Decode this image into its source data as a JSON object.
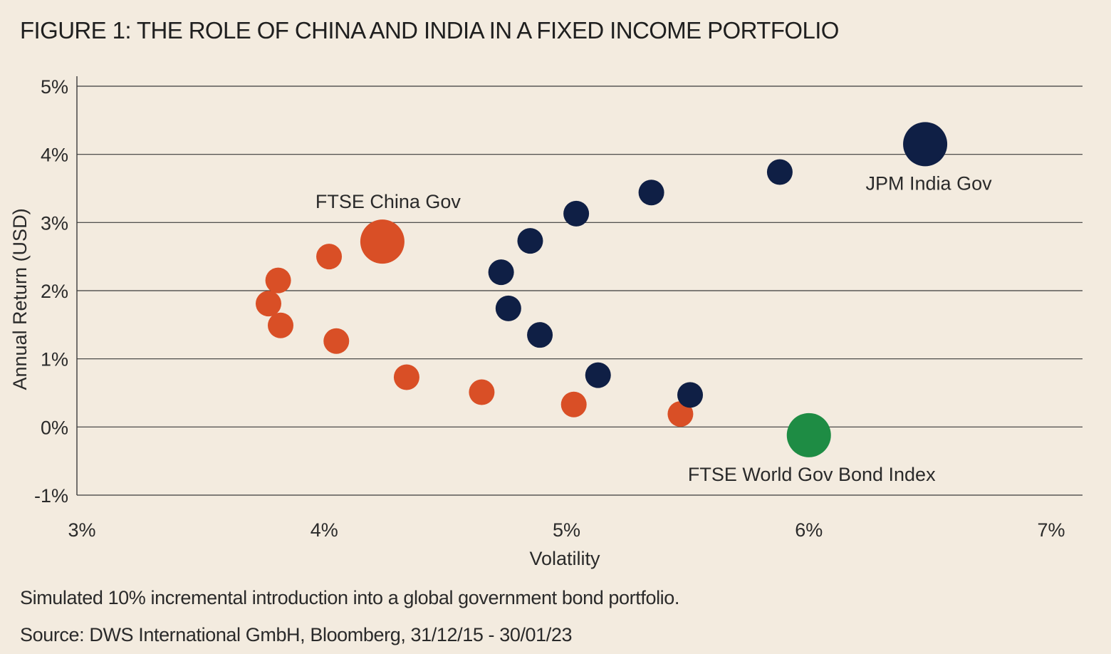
{
  "title": "FIGURE 1: THE ROLE OF CHINA AND INDIA IN A FIXED INCOME PORTFOLIO",
  "footnote": "Simulated 10% incremental introduction into a global government bond portfolio.",
  "source": "Source: DWS International GmbH, Bloomberg, 31/12/15 - 30/01/23",
  "colors": {
    "background": "#f3ebdf",
    "china": "#d94f26",
    "india": "#0f1f45",
    "world": "#1e8c44",
    "grid": "#3a3a3a"
  },
  "chart_data": {
    "type": "scatter",
    "title": "FIGURE 1: THE ROLE OF CHINA AND INDIA IN A FIXED INCOME PORTFOLIO",
    "xlabel": "Volatility",
    "ylabel": "Annual Return (USD)",
    "xlim": [
      3,
      7
    ],
    "ylim": [
      -1,
      5
    ],
    "x_ticks": [
      {
        "value": 3,
        "label": "3%"
      },
      {
        "value": 4,
        "label": "4%"
      },
      {
        "value": 5,
        "label": "5%"
      },
      {
        "value": 6,
        "label": "6%"
      },
      {
        "value": 7,
        "label": "7%"
      }
    ],
    "y_ticks": [
      {
        "value": 5,
        "label": "5%"
      },
      {
        "value": 4,
        "label": "4%"
      },
      {
        "value": 3,
        "label": "3%"
      },
      {
        "value": 2,
        "label": "2%"
      },
      {
        "value": 1,
        "label": "1%"
      },
      {
        "value": 0,
        "label": "0%"
      },
      {
        "value": -1,
        "label": "-1%"
      }
    ],
    "grid": true,
    "series": [
      {
        "name": "China",
        "color": "#d94f26",
        "points": [
          {
            "x": 4.24,
            "y": 2.72,
            "size": "large",
            "label": "FTSE China Gov"
          },
          {
            "x": 4.02,
            "y": 2.5,
            "size": "small"
          },
          {
            "x": 3.81,
            "y": 2.15,
            "size": "small"
          },
          {
            "x": 3.77,
            "y": 1.81,
            "size": "small"
          },
          {
            "x": 3.82,
            "y": 1.49,
            "size": "small"
          },
          {
            "x": 4.05,
            "y": 1.26,
            "size": "small"
          },
          {
            "x": 4.34,
            "y": 0.73,
            "size": "small"
          },
          {
            "x": 4.65,
            "y": 0.51,
            "size": "small"
          },
          {
            "x": 5.03,
            "y": 0.33,
            "size": "small"
          },
          {
            "x": 5.47,
            "y": 0.19,
            "size": "small"
          }
        ]
      },
      {
        "name": "India",
        "color": "#0f1f45",
        "points": [
          {
            "x": 5.51,
            "y": 0.47,
            "size": "small"
          },
          {
            "x": 5.13,
            "y": 0.76,
            "size": "small"
          },
          {
            "x": 4.89,
            "y": 1.35,
            "size": "small"
          },
          {
            "x": 4.76,
            "y": 1.74,
            "size": "small"
          },
          {
            "x": 4.73,
            "y": 2.27,
            "size": "small"
          },
          {
            "x": 4.85,
            "y": 2.73,
            "size": "small"
          },
          {
            "x": 5.04,
            "y": 3.13,
            "size": "small"
          },
          {
            "x": 5.35,
            "y": 3.44,
            "size": "small"
          },
          {
            "x": 5.88,
            "y": 3.74,
            "size": "small"
          },
          {
            "x": 6.48,
            "y": 4.15,
            "size": "large",
            "label": "JPM India Gov"
          }
        ]
      },
      {
        "name": "World",
        "color": "#1e8c44",
        "points": [
          {
            "x": 6.0,
            "y": -0.12,
            "size": "large",
            "label": "FTSE World Gov Bond Index"
          }
        ]
      }
    ]
  }
}
